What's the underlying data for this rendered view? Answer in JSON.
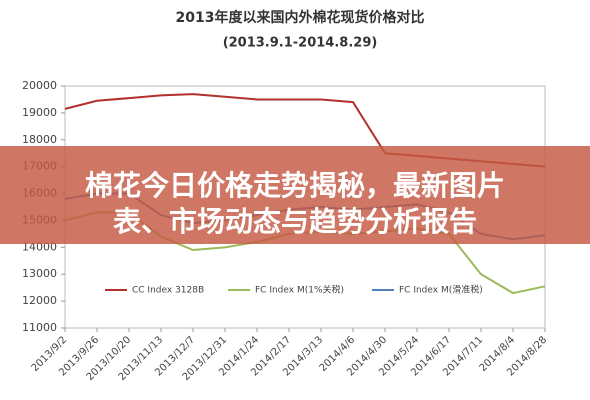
{
  "chart_data": {
    "type": "line",
    "title": "2013年度以来国内外棉花现货价格对比",
    "subtitle": "(2013.9.1-2014.8.29)",
    "categories": [
      "2013/9/2",
      "2013/9/26",
      "2013/10/20",
      "2013/11/13",
      "2013/12/7",
      "2013/12/31",
      "2014/1/24",
      "2014/2/17",
      "2014/3/13",
      "2014/4/6",
      "2014/4/30",
      "2014/5/24",
      "2014/6/17",
      "2014/7/11",
      "2014/8/4",
      "2014/8/28"
    ],
    "series": [
      {
        "name": "CC Index 3128B",
        "color": "#b3302c",
        "values": [
          19150,
          19450,
          19550,
          19650,
          19700,
          19600,
          19500,
          19500,
          19500,
          19400,
          17500,
          17400,
          17300,
          17200,
          17100,
          17000
        ]
      },
      {
        "name": "FC Index M(1%关税)",
        "color": "#9bbb59",
        "values": [
          15000,
          15300,
          15300,
          14400,
          13900,
          14000,
          14200,
          14500,
          14600,
          14500,
          14600,
          14700,
          14500,
          13000,
          12300,
          12550
        ]
      },
      {
        "name": "FC Index M(滑准税)",
        "color": "#4f81bd",
        "values": [
          15800,
          16000,
          16000,
          15200,
          14900,
          15000,
          15200,
          15400,
          15500,
          15400,
          15500,
          15600,
          15300,
          14500,
          14300,
          14450
        ]
      }
    ],
    "ylim": [
      11000,
      20000
    ],
    "yticks": [
      11000,
      12000,
      13000,
      14000,
      15000,
      16000,
      17000,
      18000,
      19000,
      20000
    ],
    "legend": "bottom"
  },
  "banner": {
    "text": "棉花今日价格走势揭秘，最新图片表、市场动态与趋势分析报告"
  }
}
